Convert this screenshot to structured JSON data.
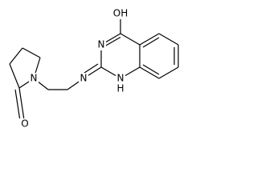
{
  "atoms": [
    {
      "label": "OH"
    },
    {
      "label": "N"
    },
    {
      "label": "N"
    },
    {
      "label": "H"
    },
    {
      "label": "N"
    },
    {
      "label": "N"
    },
    {
      "label": "O"
    }
  ]
}
